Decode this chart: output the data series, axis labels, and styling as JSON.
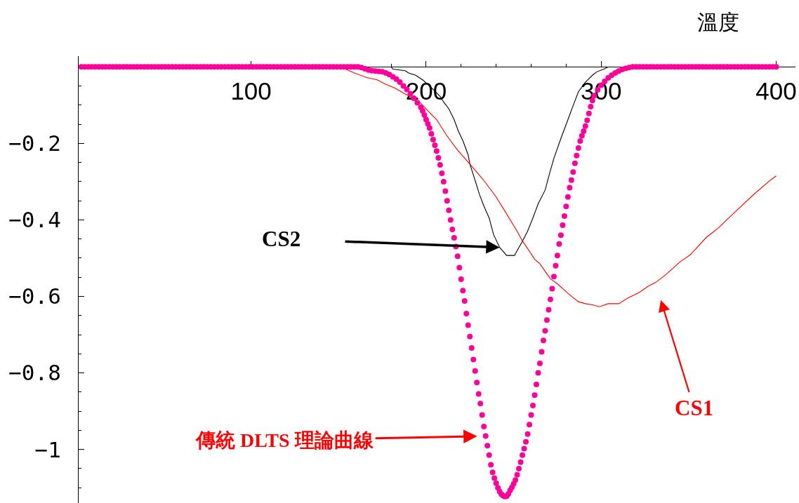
{
  "chart_data": {
    "type": "line",
    "xlabel": "溫度",
    "xlim": [
      1.5,
      411
    ],
    "xticks": [
      100,
      {
        "value": 180,
        "label": null
      },
      200,
      {
        "value": 220,
        "label": null
      },
      {
        "value": 240,
        "label": null
      },
      {
        "value": 260,
        "label": null
      },
      {
        "value": 280,
        "label": null
      },
      300,
      400
    ],
    "ylim": [
      -1.14,
      0.028
    ],
    "yticks": [
      {
        "value": -0.05,
        "label": null
      },
      {
        "value": -0.1,
        "label": null
      },
      {
        "value": -0.15,
        "label": null
      },
      -0.2,
      {
        "value": -0.25,
        "label": null
      },
      {
        "value": -0.3,
        "label": null
      },
      {
        "value": -0.35,
        "label": null
      },
      -0.4,
      {
        "value": -0.45,
        "label": null
      },
      {
        "value": -0.5,
        "label": null
      },
      {
        "value": -0.55,
        "label": null
      },
      -0.6,
      {
        "value": -0.65,
        "label": null
      },
      {
        "value": -0.7,
        "label": null
      },
      {
        "value": -0.75,
        "label": null
      },
      -0.8,
      {
        "value": -0.85,
        "label": null
      },
      {
        "value": -0.9,
        "label": null
      },
      {
        "value": -0.95,
        "label": null
      },
      -1,
      {
        "value": -1.05,
        "label": null
      },
      {
        "value": -1.1,
        "label": null
      }
    ],
    "series": [
      {
        "color": "#000000",
        "x": [
          180,
          181,
          188,
          190,
          194,
          198,
          201,
          204,
          208,
          210,
          213,
          216,
          218.5,
          221,
          224,
          225,
          228,
          230.5,
          233,
          236,
          238.5,
          242,
          246,
          250.5,
          253,
          255,
          258,
          261,
          264,
          268,
          270.5,
          273,
          277,
          281,
          284,
          287,
          291,
          295,
          297.5,
          301.5,
          304
        ],
        "values": [
          0,
          -0.006,
          -0.01,
          -0.016,
          -0.022,
          -0.034,
          -0.046,
          -0.059,
          -0.077,
          -0.092,
          -0.11,
          -0.138,
          -0.169,
          -0.193,
          -0.23,
          -0.254,
          -0.297,
          -0.334,
          -0.364,
          -0.395,
          -0.438,
          -0.472,
          -0.493,
          -0.493,
          -0.472,
          -0.456,
          -0.429,
          -0.395,
          -0.358,
          -0.322,
          -0.279,
          -0.239,
          -0.187,
          -0.138,
          -0.101,
          -0.065,
          -0.04,
          -0.022,
          -0.013,
          -0.006,
          0
        ]
      },
      {
        "color": "#ff0000",
        "x": [
          151,
          159,
          166,
          172,
          177,
          182,
          188,
          192,
          197,
          202,
          206,
          212,
          218,
          225,
          233,
          240,
          245,
          252,
          255,
          258,
          262,
          265,
          269,
          271,
          275,
          281,
          287,
          291,
          295,
          299,
          304,
          310,
          315,
          322,
          327,
          331,
          337,
          345,
          351,
          360,
          367,
          377,
          388,
          397,
          400
        ],
        "values": [
          0,
          -0.016,
          -0.028,
          -0.034,
          -0.046,
          -0.055,
          -0.071,
          -0.08,
          -0.095,
          -0.12,
          -0.138,
          -0.181,
          -0.218,
          -0.254,
          -0.297,
          -0.34,
          -0.377,
          -0.43,
          -0.455,
          -0.475,
          -0.503,
          -0.515,
          -0.541,
          -0.554,
          -0.567,
          -0.592,
          -0.614,
          -0.619,
          -0.622,
          -0.627,
          -0.619,
          -0.619,
          -0.605,
          -0.589,
          -0.573,
          -0.564,
          -0.543,
          -0.51,
          -0.491,
          -0.446,
          -0.421,
          -0.377,
          -0.33,
          -0.295,
          -0.285
        ]
      },
      {
        "type": "scatter",
        "marker": "circle",
        "color": "#ff0099",
        "x": [
          3,
          5,
          7,
          9,
          11,
          13,
          15,
          17,
          19,
          21,
          23,
          25,
          27,
          29,
          31,
          33,
          35,
          37,
          39,
          41,
          43,
          45,
          47,
          49,
          51,
          53,
          55,
          57,
          59,
          61,
          63,
          65,
          67,
          69,
          71,
          73,
          75,
          77,
          79,
          81,
          83,
          85,
          87,
          89,
          91,
          93,
          95,
          97,
          99,
          101,
          103,
          105,
          107,
          109,
          111,
          113,
          115,
          117,
          119,
          121,
          123,
          125,
          127,
          129,
          131,
          133,
          135,
          137,
          139,
          141,
          143,
          145,
          147,
          149,
          151,
          153,
          155,
          157,
          159,
          161,
          163,
          165,
          167,
          169,
          171,
          173,
          175,
          177,
          179,
          181,
          183,
          185,
          187,
          189,
          191,
          193,
          195,
          197,
          198,
          199,
          200,
          201,
          202,
          203,
          204,
          205,
          206,
          207,
          208,
          209,
          210,
          211,
          212,
          213,
          214,
          215,
          216,
          217,
          218,
          219,
          220,
          221,
          222,
          223,
          224,
          225,
          226,
          227,
          228,
          229,
          230,
          231,
          232,
          233,
          234,
          235,
          236,
          237,
          238,
          239,
          240,
          241,
          242,
          243,
          244,
          245,
          246,
          247,
          248,
          249,
          250,
          251,
          252,
          253,
          254,
          255,
          256,
          257,
          258,
          259,
          260,
          261,
          262,
          263,
          264,
          265,
          266,
          267,
          268,
          269,
          270,
          271,
          272,
          273,
          274,
          275,
          276,
          277,
          278,
          279,
          280,
          281,
          282,
          283,
          284,
          285,
          286,
          287,
          288,
          289,
          290,
          291,
          292,
          293,
          294,
          295,
          296,
          298,
          300,
          302,
          304,
          306,
          308,
          310,
          312,
          314,
          316,
          318,
          320,
          322,
          324,
          326,
          328,
          330,
          332,
          334,
          336,
          338,
          340,
          342,
          344,
          346,
          348,
          350,
          352,
          354,
          356,
          358,
          360,
          362,
          364,
          366,
          368,
          370,
          372,
          374,
          376,
          378,
          380,
          382,
          384,
          386,
          388,
          390,
          392,
          394,
          396,
          398,
          400
        ],
        "values": [
          0,
          0,
          0,
          0,
          0,
          0,
          0,
          0,
          0,
          0,
          0,
          0,
          0,
          0,
          0,
          0,
          0,
          0,
          0,
          0,
          0,
          0,
          0,
          0,
          0,
          0,
          0,
          0,
          0,
          0,
          0,
          0,
          0,
          0,
          0,
          0,
          0,
          0,
          0,
          0,
          0,
          0,
          0,
          0,
          0,
          0,
          0,
          0,
          0,
          0,
          0,
          0,
          0,
          0,
          0,
          0,
          0,
          0,
          0,
          0,
          0,
          0,
          0,
          0,
          0,
          0,
          0,
          0,
          0,
          0,
          0,
          0,
          0,
          0,
          0,
          0,
          0,
          0,
          0,
          0,
          -0.002,
          -0.005,
          -0.008,
          -0.01,
          -0.011,
          -0.012,
          -0.013,
          -0.016,
          -0.02,
          -0.026,
          -0.032,
          -0.04,
          -0.05,
          -0.059,
          -0.07,
          -0.082,
          -0.094,
          -0.106,
          -0.115,
          -0.126,
          -0.138,
          -0.149,
          -0.16,
          -0.175,
          -0.19,
          -0.205,
          -0.22,
          -0.238,
          -0.256,
          -0.278,
          -0.3,
          -0.325,
          -0.35,
          -0.375,
          -0.4,
          -0.425,
          -0.447,
          -0.47,
          -0.495,
          -0.525,
          -0.555,
          -0.585,
          -0.612,
          -0.645,
          -0.675,
          -0.705,
          -0.735,
          -0.765,
          -0.795,
          -0.825,
          -0.855,
          -0.88,
          -0.91,
          -0.94,
          -0.965,
          -0.99,
          -1.015,
          -1.04,
          -1.06,
          -1.075,
          -1.088,
          -1.1,
          -1.11,
          -1.117,
          -1.121,
          -1.123,
          -1.122,
          -1.116,
          -1.107,
          -1.099,
          -1.09,
          -1.08,
          -1.066,
          -1.05,
          -1.033,
          -1.015,
          -0.998,
          -0.98,
          -0.96,
          -0.935,
          -0.91,
          -0.885,
          -0.858,
          -0.83,
          -0.8,
          -0.775,
          -0.745,
          -0.715,
          -0.69,
          -0.662,
          -0.635,
          -0.608,
          -0.58,
          -0.548,
          -0.52,
          -0.493,
          -0.463,
          -0.44,
          -0.414,
          -0.39,
          -0.365,
          -0.34,
          -0.316,
          -0.296,
          -0.275,
          -0.252,
          -0.232,
          -0.212,
          -0.194,
          -0.18,
          -0.168,
          -0.155,
          -0.14,
          -0.122,
          -0.104,
          -0.088,
          -0.075,
          -0.06,
          -0.048,
          -0.038,
          -0.029,
          -0.022,
          -0.016,
          -0.011,
          -0.007,
          -0.004,
          -0.002,
          0,
          0,
          0,
          0,
          0,
          0,
          0,
          0,
          0,
          0,
          0,
          0,
          0,
          0,
          0,
          0,
          0,
          0,
          0,
          0,
          0,
          0,
          0,
          0,
          0,
          0,
          0,
          0,
          0,
          0,
          0,
          0,
          0,
          0,
          0,
          0,
          0,
          0,
          0,
          0,
          0,
          0
        ]
      }
    ],
    "annotations": [
      {
        "text": "CS2",
        "x": 242,
        "y": -0.472
      },
      {
        "text": "CS1",
        "x": 331,
        "y": -0.564
      },
      {
        "text": "傳統 DLTS 理論曲線",
        "x": 234,
        "y": -0.965
      }
    ]
  }
}
